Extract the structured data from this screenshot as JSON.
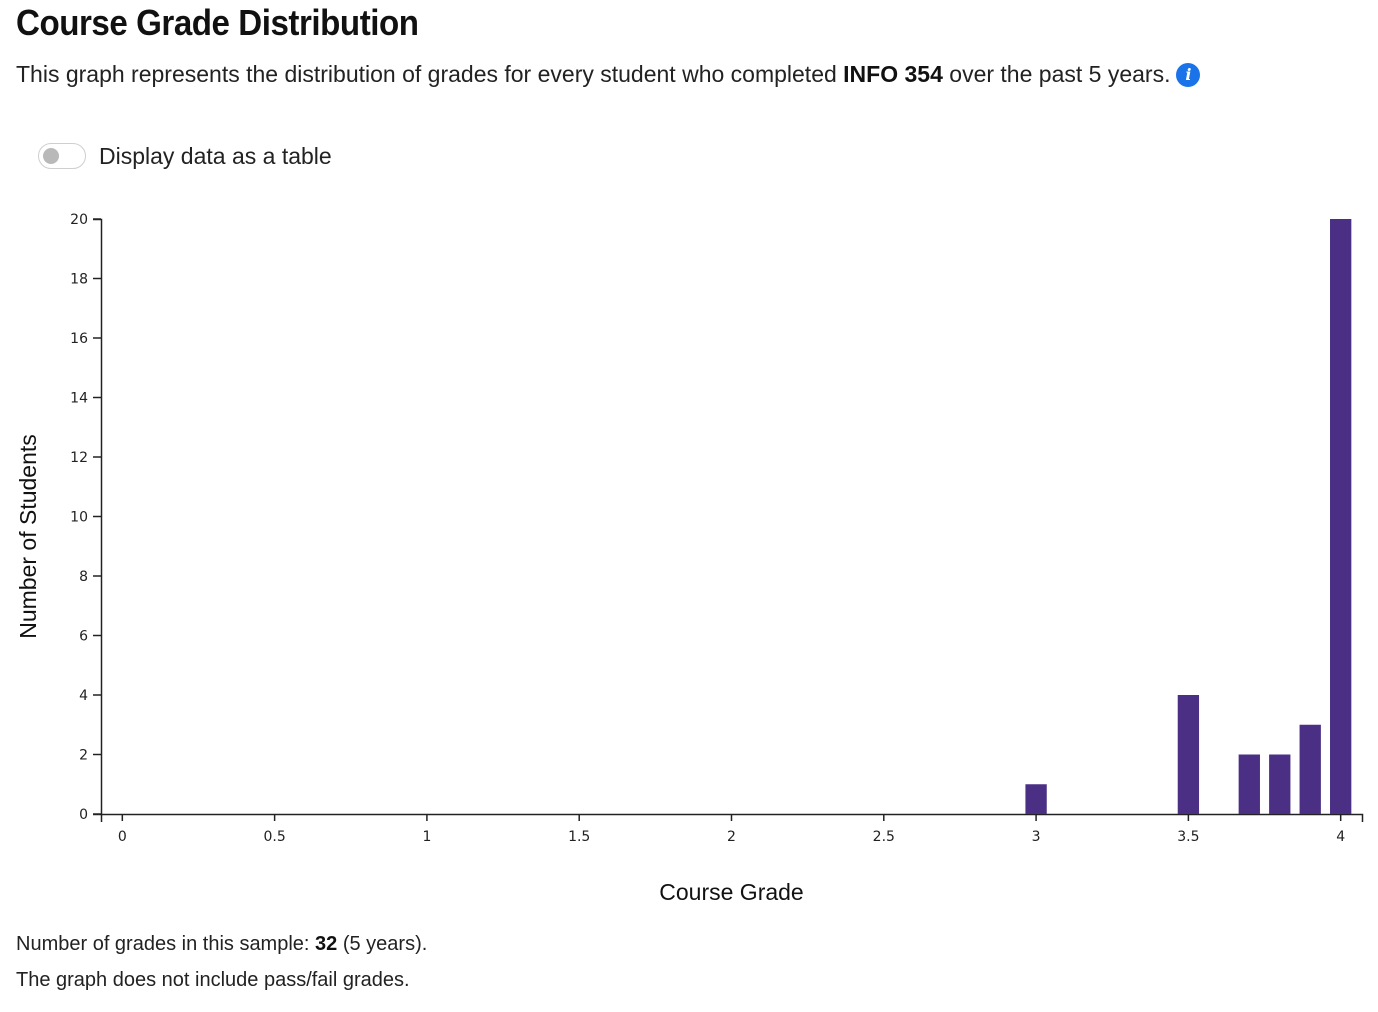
{
  "header": {
    "title": "Course Grade Distribution",
    "subtitle_prefix": "This graph represents the distribution of grades for every student who completed ",
    "course_code": "INFO 354",
    "subtitle_suffix": " over the past 5 years.",
    "info_icon": "info-icon",
    "info_icon_glyph": "i"
  },
  "toggle": {
    "label": "Display data as a table",
    "checked": false
  },
  "colors": {
    "bar": "#4a2f85",
    "info_icon": "#1a73e8"
  },
  "chart_data": {
    "type": "bar",
    "title": "",
    "xlabel": "Course Grade",
    "ylabel": "Number of Students",
    "xlim": [
      -0.07,
      4.07
    ],
    "ylim": [
      0,
      20
    ],
    "x_ticks": [
      "0",
      "0.5",
      "1",
      "1.5",
      "2",
      "2.5",
      "3",
      "3.5",
      "4"
    ],
    "y_ticks": [
      "0",
      "2",
      "4",
      "6",
      "8",
      "10",
      "12",
      "14",
      "16",
      "18",
      "20"
    ],
    "bar_width": 0.07,
    "x": [
      3.0,
      3.5,
      3.7,
      3.8,
      3.9,
      4.0
    ],
    "values": [
      1,
      4,
      2,
      2,
      3,
      20
    ],
    "grid": false,
    "legend": "none"
  },
  "footer": {
    "sample_prefix": "Number of grades in this sample: ",
    "sample_count": "32",
    "sample_suffix": " (5 years).",
    "note": "The graph does not include pass/fail grades."
  }
}
